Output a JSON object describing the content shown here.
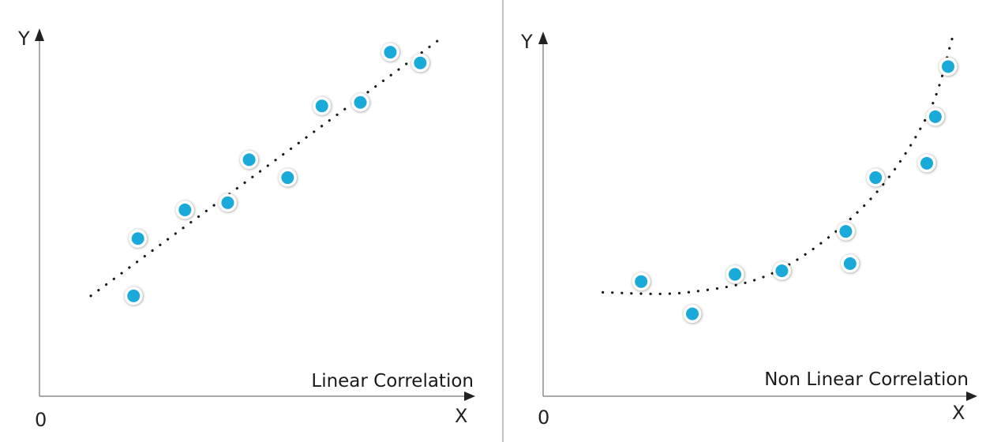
{
  "colors": {
    "point_fill": "#1aaad9",
    "point_ring": "#ffffff",
    "axis": "#555555",
    "trend": "#1a1a1a",
    "divider": "#888888"
  },
  "chart_data": [
    {
      "type": "scatter",
      "title": "Linear Correlation",
      "xlabel": "X",
      "ylabel": "Y",
      "origin_label": "0",
      "xlim": [
        0,
        10
      ],
      "ylim": [
        0,
        10
      ],
      "grid": false,
      "trend": "linear",
      "trendline": [
        [
          1.2,
          2.8
        ],
        [
          9.4,
          10.0
        ]
      ],
      "points": [
        {
          "x": 2.2,
          "y": 2.8
        },
        {
          "x": 2.3,
          "y": 4.4
        },
        {
          "x": 3.4,
          "y": 5.2
        },
        {
          "x": 4.4,
          "y": 5.4
        },
        {
          "x": 4.9,
          "y": 6.6
        },
        {
          "x": 5.8,
          "y": 6.1
        },
        {
          "x": 6.6,
          "y": 8.1
        },
        {
          "x": 7.5,
          "y": 8.2
        },
        {
          "x": 8.2,
          "y": 9.6
        },
        {
          "x": 8.9,
          "y": 9.3
        }
      ]
    },
    {
      "type": "scatter",
      "title": "Non Linear Correlation",
      "xlabel": "X",
      "ylabel": "Y",
      "origin_label": "0",
      "xlim": [
        0,
        10
      ],
      "ylim": [
        0,
        10
      ],
      "grid": false,
      "trend": "curved",
      "trendline": [
        [
          1.4,
          2.9
        ],
        [
          3.4,
          2.9
        ],
        [
          5.5,
          3.5
        ],
        [
          7.6,
          5.4
        ],
        [
          9.0,
          7.8
        ],
        [
          9.6,
          10.0
        ]
      ],
      "points": [
        {
          "x": 2.3,
          "y": 3.2
        },
        {
          "x": 3.5,
          "y": 2.3
        },
        {
          "x": 4.5,
          "y": 3.4
        },
        {
          "x": 5.6,
          "y": 3.5
        },
        {
          "x": 7.1,
          "y": 4.6
        },
        {
          "x": 7.2,
          "y": 3.7
        },
        {
          "x": 7.8,
          "y": 6.1
        },
        {
          "x": 9.0,
          "y": 6.5
        },
        {
          "x": 9.2,
          "y": 7.8
        },
        {
          "x": 9.5,
          "y": 9.2
        }
      ]
    }
  ]
}
